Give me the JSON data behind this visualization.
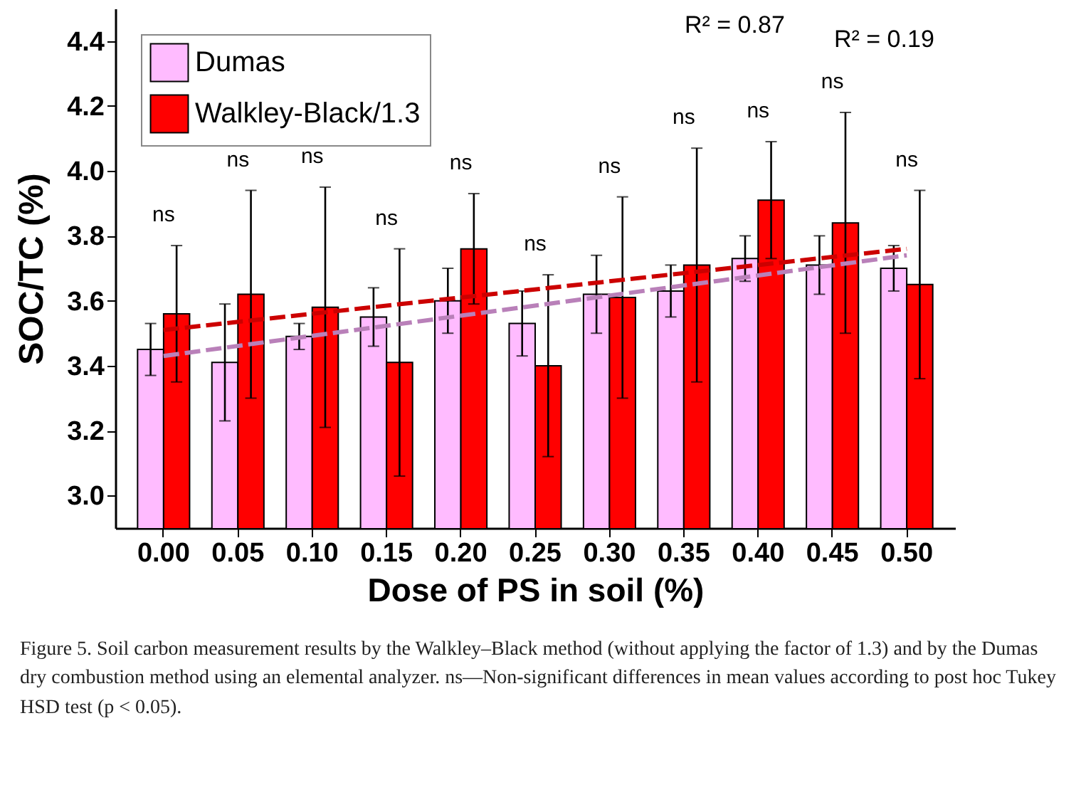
{
  "chart_data": {
    "type": "bar",
    "xlabel": "Dose of PS in soil (%)",
    "ylabel": "SOC/TC (%)",
    "categories": [
      "0.00",
      "0.05",
      "0.10",
      "0.15",
      "0.20",
      "0.25",
      "0.30",
      "0.35",
      "0.40",
      "0.45",
      "0.50"
    ],
    "series": [
      {
        "name": "Dumas",
        "color": "#ffbbff",
        "values": [
          3.45,
          3.41,
          3.49,
          3.55,
          3.6,
          3.53,
          3.62,
          3.63,
          3.73,
          3.71,
          3.7
        ],
        "errors": [
          0.08,
          0.18,
          0.04,
          0.09,
          0.1,
          0.1,
          0.12,
          0.08,
          0.07,
          0.09,
          0.07
        ]
      },
      {
        "name": "Walkley-Black/1.3",
        "color": "#ff0000",
        "values": [
          3.56,
          3.62,
          3.58,
          3.41,
          3.76,
          3.4,
          3.61,
          3.71,
          3.91,
          3.84,
          3.65
        ],
        "errors": [
          0.21,
          0.32,
          0.37,
          0.35,
          0.17,
          0.28,
          0.31,
          0.36,
          0.18,
          0.34,
          0.29
        ]
      },
      {
        "type": "line",
        "color": "#cc0000",
        "line_style": "dashed",
        "x": [
          "0.00",
          "0.50"
        ],
        "values": [
          3.51,
          3.76
        ]
      },
      {
        "type": "line",
        "color": "#b980b9",
        "line_style": "dashed",
        "x": [
          "0.00",
          "0.50"
        ],
        "values": [
          3.43,
          3.74
        ]
      }
    ],
    "ylim": [
      2.9,
      4.5
    ],
    "yticks": [
      {
        "value": 3,
        "label": "3.0"
      },
      3.2,
      3.4,
      3.6,
      3.8,
      {
        "value": 4,
        "label": "4.0"
      },
      4.2,
      4.4
    ],
    "legend": "top left",
    "annotations": [
      "ns",
      "ns",
      "ns",
      "ns",
      "ns",
      "ns",
      "ns",
      "ns",
      "ns",
      "ns",
      "ns",
      "R² = 0.87",
      "R² = 0.19",
      "Figure 5. Soil carbon measurement results by the Walkley–Black method (without applying the factor of 1.3) and by the Dumas dry combustion method using an elemental analyzer. ns—Non-significant differences in mean values according to post hoc Tukey HSD test (p < 0.05)."
    ]
  }
}
